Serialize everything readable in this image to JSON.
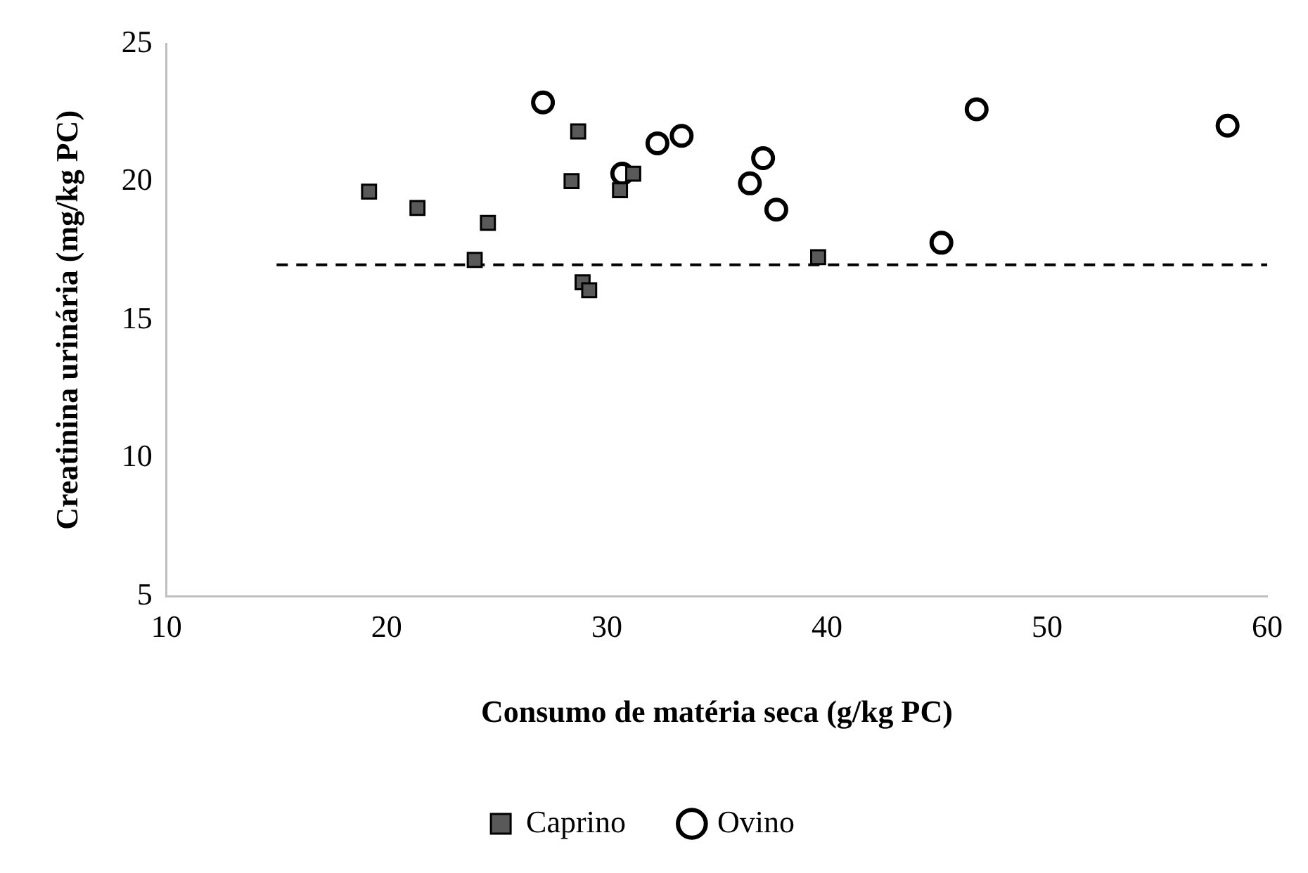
{
  "chart_data": {
    "type": "scatter",
    "xlabel": "Consumo de matéria seca (g/kg PC)",
    "ylabel": "Creatinina urinária (mg/kg PC)",
    "xlim": [
      10,
      60
    ],
    "xticks": [
      10,
      20,
      30,
      40,
      50,
      60
    ],
    "ylim": [
      5,
      25
    ],
    "yticks": [
      5,
      10,
      15,
      20,
      25
    ],
    "grid": false,
    "legend": "bottom",
    "series": [
      {
        "name": "Caprino",
        "color": "#595959",
        "marker": "square",
        "x": [
          19.2,
          21.4,
          24.6,
          24.0,
          28.7,
          28.4,
          30.6,
          31.2,
          39.6,
          28.9,
          29.2
        ],
        "values": [
          19.65,
          19.06,
          18.52,
          17.18,
          21.83,
          20.03,
          19.7,
          20.3,
          17.28,
          16.37,
          16.08
        ]
      },
      {
        "name": "Ovino",
        "color": "#ffffff",
        "marker": "circle",
        "x": [
          27.1,
          30.7,
          32.3,
          33.4,
          36.5,
          37.1,
          37.7,
          45.2,
          46.8,
          58.2
        ],
        "values": [
          22.88,
          20.3,
          21.4,
          21.67,
          19.95,
          20.86,
          19.0,
          17.8,
          22.63,
          22.04
        ]
      },
      {
        "type": "line",
        "color": "#000000",
        "line_style": "dashed",
        "marker": "none",
        "x": [
          15,
          60
        ],
        "values": [
          17,
          17
        ]
      }
    ]
  }
}
